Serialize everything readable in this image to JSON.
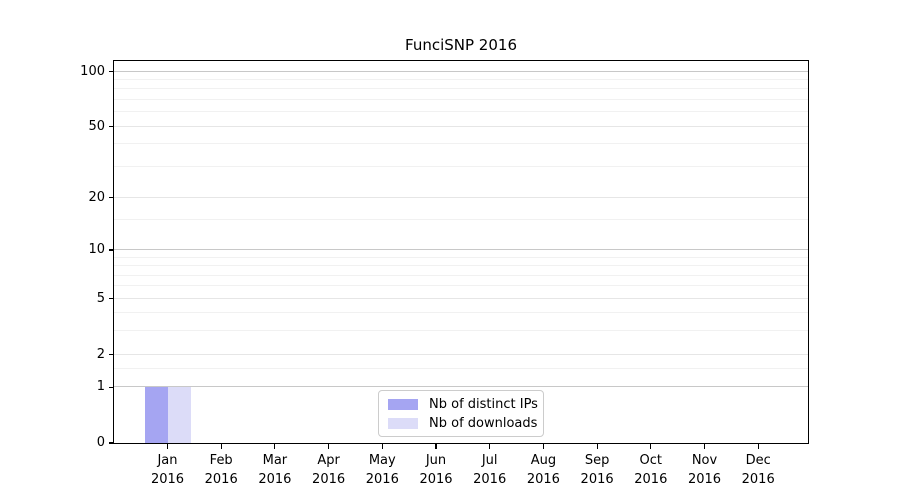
{
  "chart_data": {
    "type": "bar",
    "title": "FunciSNP 2016",
    "categories": [
      "Jan",
      "Feb",
      "Mar",
      "Apr",
      "May",
      "Jun",
      "Jul",
      "Aug",
      "Sep",
      "Oct",
      "Nov",
      "Dec"
    ],
    "category_year": "2016",
    "series": [
      {
        "name": "Nb of distinct IPs",
        "color": "#a5a5f2",
        "values": [
          1,
          0,
          0,
          0,
          0,
          0,
          0,
          0,
          0,
          0,
          0,
          0
        ]
      },
      {
        "name": "Nb of downloads",
        "color": "#dcdcf8",
        "values": [
          1,
          0,
          0,
          0,
          0,
          0,
          0,
          0,
          0,
          0,
          0,
          0
        ]
      }
    ],
    "y_scale": "log10(1+x)",
    "ylim": [
      0,
      114
    ],
    "y_ticks": [
      100,
      50,
      20,
      10,
      5,
      2,
      1,
      0
    ],
    "y_major_gridlines": [
      1,
      10,
      100
    ],
    "y_mid_gridlines": [
      2,
      5,
      20,
      50
    ],
    "y_minor_gridlines": [
      1.5,
      3,
      4,
      6,
      7,
      8,
      9,
      15,
      30,
      40,
      60,
      70,
      80,
      90
    ],
    "grid": "horizontal",
    "legend_position": "bottom-center",
    "colors": {
      "grid_major": "#c8c8c8",
      "grid_mid": "#e6e6e6",
      "grid_minor": "#f1f1f1",
      "axis": "#000000",
      "background": "#ffffff"
    }
  }
}
